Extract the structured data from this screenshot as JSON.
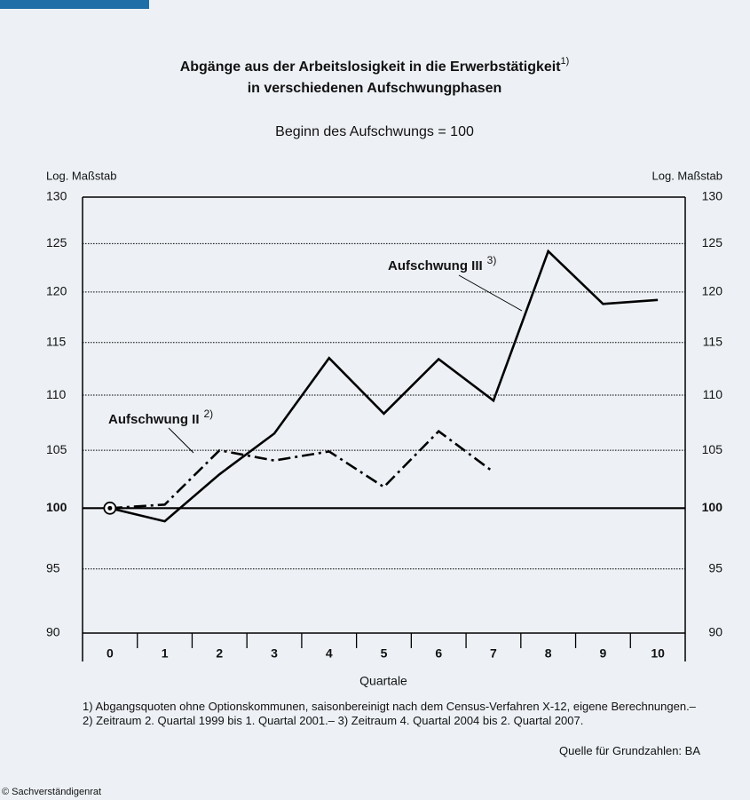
{
  "chart_data": {
    "type": "line",
    "title": "Abgänge aus der Arbeitslosigkeit in die Erwerbstätigkeit",
    "title_note": "1)",
    "title_line2": "in verschiedenen Aufschwungphasen",
    "subtitle": "Beginn des Aufschwungs = 100",
    "y_label_left": "Log. Maßstab",
    "y_label_right": "Log. Maßstab",
    "x_label": "Quartale",
    "categories": [
      "0",
      "1",
      "2",
      "3",
      "4",
      "5",
      "6",
      "7",
      "8",
      "9",
      "10"
    ],
    "series": [
      {
        "name": "Aufschwung II",
        "note": "2)",
        "color": "#000000",
        "dash": "dashdot",
        "values": [
          100,
          100.3,
          105.0,
          104.1,
          104.9,
          101.8,
          106.7,
          103.1,
          null,
          null,
          null
        ]
      },
      {
        "name": "Aufschwung III",
        "note": "3)",
        "color": "#000000",
        "dash": "solid",
        "values": [
          100,
          98.9,
          102.9,
          106.5,
          113.5,
          108.3,
          113.4,
          109.5,
          124.2,
          118.8,
          119.2
        ]
      }
    ],
    "ylim": [
      90,
      130
    ],
    "yticks": [
      90,
      95,
      100,
      105,
      110,
      115,
      120,
      125,
      130
    ],
    "log_scale": true,
    "grid": true,
    "reference_line": 100,
    "footnote": "1) Abgangsquoten ohne Optionskommunen, saisonbereinigt nach dem Census-Verfahren X-12, eigene Berechnungen.– 2) Zeitraum  2. Quartal 1999 bis 1. Quartal 2001.– 3) Zeitraum 4. Quartal 2004 bis 2. Quartal  2007.",
    "source": "Quelle für Grundzahlen: BA",
    "copyright": "© Sachverständigenrat"
  }
}
